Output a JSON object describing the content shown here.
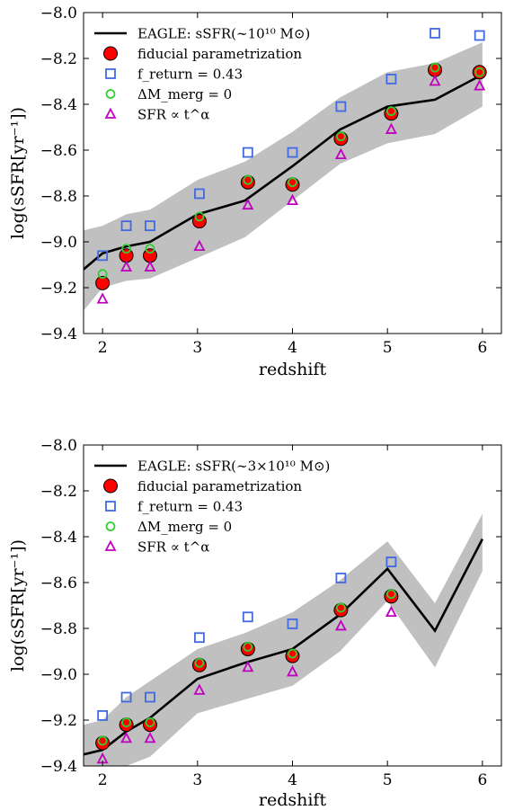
{
  "chart_data": [
    {
      "type": "line",
      "xlabel": "redshift",
      "ylabel": "log(sSFR[yr⁻¹])",
      "xlim": [
        1.8,
        6.2
      ],
      "ylim": [
        -9.4,
        -8.0
      ],
      "x_ticks": [
        "2",
        "3",
        "4",
        "5",
        "6"
      ],
      "y_ticks": [
        "−9.4",
        "−9.2",
        "−9.0",
        "−8.8",
        "−8.6",
        "−8.4",
        "−8.2",
        "−8.0"
      ],
      "x_tick_values": [
        2,
        3,
        4,
        5,
        6
      ],
      "y_tick_values": [
        -9.4,
        -9.2,
        -9.0,
        -8.8,
        -8.6,
        -8.4,
        -8.2,
        -8.0
      ],
      "legend_position": "top-left",
      "line": {
        "name": "EAGLE: sSFR(∼10¹⁰ M⊙)",
        "color": "#000000",
        "x": [
          1.8,
          2.0,
          2.25,
          2.5,
          3.0,
          3.5,
          4.0,
          4.5,
          5.0,
          5.5,
          6.0
        ],
        "y": [
          -9.12,
          -9.05,
          -9.02,
          -9.0,
          -8.88,
          -8.82,
          -8.67,
          -8.51,
          -8.41,
          -8.38,
          -8.27
        ],
        "band_lower": [
          -9.3,
          -9.2,
          -9.17,
          -9.16,
          -9.07,
          -8.98,
          -8.82,
          -8.66,
          -8.57,
          -8.53,
          -8.41
        ],
        "band_upper": [
          -8.95,
          -8.93,
          -8.88,
          -8.86,
          -8.73,
          -8.65,
          -8.52,
          -8.37,
          -8.26,
          -8.22,
          -8.13
        ],
        "band_color": "#c0c0c0"
      },
      "series": [
        {
          "name": "fiducial parametrization",
          "marker": "circle-filled",
          "color": "#ff0000",
          "x": [
            2.0,
            2.25,
            2.5,
            3.02,
            3.53,
            4.0,
            4.51,
            5.04,
            5.5,
            5.97
          ],
          "y": [
            -9.18,
            -9.06,
            -9.06,
            -8.91,
            -8.74,
            -8.75,
            -8.55,
            -8.44,
            -8.25,
            -8.26
          ]
        },
        {
          "name": "f_return = 0.43",
          "marker": "square-open",
          "color": "#4169e1",
          "x": [
            2.0,
            2.25,
            2.5,
            3.02,
            3.53,
            4.0,
            4.51,
            5.04,
            5.5,
            5.97
          ],
          "y": [
            -9.06,
            -8.93,
            -8.93,
            -8.79,
            -8.61,
            -8.61,
            -8.41,
            -8.29,
            -8.09,
            -8.1
          ]
        },
        {
          "name": "ΔM_merg = 0",
          "marker": "circle-open",
          "color": "#33cc33",
          "x": [
            2.0,
            2.25,
            2.5,
            3.02,
            3.53,
            4.0,
            4.51,
            5.04,
            5.5,
            5.97
          ],
          "y": [
            -9.14,
            -9.03,
            -9.03,
            -8.89,
            -8.73,
            -8.74,
            -8.54,
            -8.43,
            -8.24,
            -8.26
          ]
        },
        {
          "name": "SFR ∝ t^α",
          "marker": "triangle-open",
          "color": "#bf00bf",
          "x": [
            2.0,
            2.25,
            2.5,
            3.02,
            3.53,
            4.0,
            4.51,
            5.04,
            5.5,
            5.97
          ],
          "y": [
            -9.25,
            -9.11,
            -9.11,
            -9.02,
            -8.84,
            -8.82,
            -8.62,
            -8.51,
            -8.3,
            -8.32
          ]
        }
      ]
    },
    {
      "type": "line",
      "xlabel": "redshift",
      "ylabel": "log(sSFR[yr⁻¹])",
      "xlim": [
        1.8,
        6.2
      ],
      "ylim": [
        -9.4,
        -8.0
      ],
      "x_ticks": [
        "2",
        "3",
        "4",
        "5",
        "6"
      ],
      "y_ticks": [
        "−9.4",
        "−9.2",
        "−9.0",
        "−8.8",
        "−8.6",
        "−8.4",
        "−8.2",
        "−8.0"
      ],
      "x_tick_values": [
        2,
        3,
        4,
        5,
        6
      ],
      "y_tick_values": [
        -9.4,
        -9.2,
        -9.0,
        -8.8,
        -8.6,
        -8.4,
        -8.2,
        -8.0
      ],
      "legend_position": "top-left",
      "line": {
        "name": "EAGLE: sSFR(∼3×10¹⁰ M⊙)",
        "color": "#000000",
        "x": [
          1.8,
          2.0,
          2.25,
          2.5,
          3.0,
          3.5,
          4.0,
          4.5,
          5.0,
          5.5,
          6.0
        ],
        "y": [
          -9.35,
          -9.33,
          -9.25,
          -9.19,
          -9.02,
          -8.95,
          -8.89,
          -8.74,
          -8.54,
          -8.81,
          -8.41
        ],
        "band_lower": [
          -9.47,
          -9.45,
          -9.4,
          -9.36,
          -9.17,
          -9.11,
          -9.05,
          -8.9,
          -8.68,
          -8.97,
          -8.55
        ],
        "band_upper": [
          -9.22,
          -9.2,
          -9.1,
          -9.03,
          -8.89,
          -8.82,
          -8.73,
          -8.59,
          -8.42,
          -8.69,
          -8.3
        ],
        "band_color": "#c0c0c0"
      },
      "series": [
        {
          "name": "fiducial parametrization",
          "marker": "circle-filled",
          "color": "#ff0000",
          "x": [
            2.0,
            2.25,
            2.5,
            3.02,
            3.53,
            4.0,
            4.51,
            5.04
          ],
          "y": [
            -9.3,
            -9.22,
            -9.22,
            -8.96,
            -8.89,
            -8.92,
            -8.72,
            -8.66
          ]
        },
        {
          "name": "f_return = 0.43",
          "marker": "square-open",
          "color": "#4169e1",
          "x": [
            2.0,
            2.25,
            2.5,
            3.02,
            3.53,
            4.0,
            4.51,
            5.04
          ],
          "y": [
            -9.18,
            -9.1,
            -9.1,
            -8.84,
            -8.75,
            -8.78,
            -8.58,
            -8.51
          ]
        },
        {
          "name": "ΔM_merg = 0",
          "marker": "circle-open",
          "color": "#33cc33",
          "x": [
            2.0,
            2.25,
            2.5,
            3.02,
            3.53,
            4.0,
            4.51,
            5.04
          ],
          "y": [
            -9.29,
            -9.21,
            -9.21,
            -8.95,
            -8.88,
            -8.91,
            -8.71,
            -8.65
          ]
        },
        {
          "name": "SFR ∝ t^α",
          "marker": "triangle-open",
          "color": "#bf00bf",
          "x": [
            2.0,
            2.25,
            2.5,
            3.02,
            3.53,
            4.0,
            4.51,
            5.04
          ],
          "y": [
            -9.37,
            -9.28,
            -9.28,
            -9.07,
            -8.97,
            -8.99,
            -8.79,
            -8.73
          ]
        }
      ]
    }
  ]
}
